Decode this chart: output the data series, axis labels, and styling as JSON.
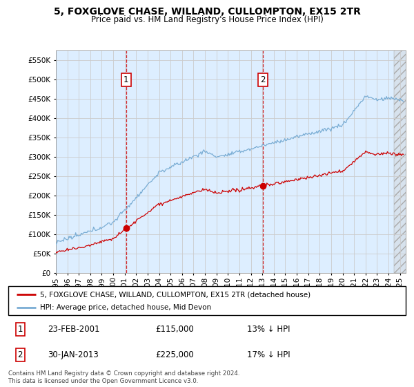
{
  "title": "5, FOXGLOVE CHASE, WILLAND, CULLOMPTON, EX15 2TR",
  "subtitle": "Price paid vs. HM Land Registry's House Price Index (HPI)",
  "legend_line1": "5, FOXGLOVE CHASE, WILLAND, CULLOMPTON, EX15 2TR (detached house)",
  "legend_line2": "HPI: Average price, detached house, Mid Devon",
  "annotation1_label": "1",
  "annotation1_date": "23-FEB-2001",
  "annotation1_price": 115000,
  "annotation1_pct": "13% ↓ HPI",
  "annotation2_label": "2",
  "annotation2_date": "30-JAN-2013",
  "annotation2_price": 225000,
  "annotation2_pct": "17% ↓ HPI",
  "footer": "Contains HM Land Registry data © Crown copyright and database right 2024.\nThis data is licensed under the Open Government Licence v3.0.",
  "hpi_color": "#7aadd4",
  "price_color": "#cc0000",
  "annotation_color": "#cc0000",
  "grid_color": "#cccccc",
  "background_color": "#ddeeff",
  "ylim": [
    0,
    575000
  ],
  "yticks": [
    0,
    50000,
    100000,
    150000,
    200000,
    250000,
    300000,
    350000,
    400000,
    450000,
    500000,
    550000
  ],
  "xlim_start": 1995.0,
  "xlim_end": 2025.5,
  "sale1_x": 2001.125,
  "sale1_y": 115000,
  "sale2_x": 2013.04,
  "sale2_y": 225000,
  "xtick_years": [
    1995,
    1996,
    1997,
    1998,
    1999,
    2000,
    2001,
    2002,
    2003,
    2004,
    2005,
    2006,
    2007,
    2008,
    2009,
    2010,
    2011,
    2012,
    2013,
    2014,
    2015,
    2016,
    2017,
    2018,
    2019,
    2020,
    2021,
    2022,
    2023,
    2024,
    2025
  ]
}
